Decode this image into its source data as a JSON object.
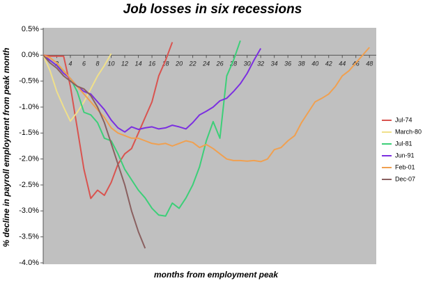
{
  "chart_data": {
    "type": "line",
    "title": "Job losses in six recessions",
    "x_label": "months from employment peak",
    "y_label": "% decline in payroll employment from peak month",
    "x": [
      0,
      1,
      2,
      3,
      4,
      5,
      6,
      7,
      8,
      9,
      10,
      11,
      12,
      13,
      14,
      15,
      16,
      17,
      18,
      19,
      20,
      21,
      22,
      23,
      24,
      25,
      26,
      27,
      28,
      29,
      30,
      31,
      32,
      33,
      34,
      35,
      36,
      37,
      38,
      39,
      40,
      41,
      42,
      43,
      44,
      45,
      46,
      47,
      48
    ],
    "xlim": [
      0,
      49
    ],
    "xticks": [
      2,
      4,
      6,
      8,
      10,
      12,
      14,
      16,
      18,
      20,
      22,
      24,
      26,
      28,
      30,
      32,
      34,
      36,
      38,
      40,
      42,
      44,
      46,
      48
    ],
    "ylim": [
      -4.0,
      0.5
    ],
    "yticks": [
      {
        "value": 0.5,
        "label": "0.5%"
      },
      {
        "value": 0,
        "label": "0.0%"
      },
      {
        "value": -0.5,
        "label": "-0.5%"
      },
      {
        "value": -1.0,
        "label": "-1.0%"
      },
      {
        "value": -1.5,
        "label": "-1.5%"
      },
      {
        "value": -2.0,
        "label": "-2.0%"
      },
      {
        "value": -2.5,
        "label": "-2.5%"
      },
      {
        "value": -3.0,
        "label": "-3.0%"
      },
      {
        "value": -3.5,
        "label": "-3.5%"
      },
      {
        "value": -4.0,
        "label": "-4.0%"
      }
    ],
    "grid": false,
    "legend": "right",
    "series": [
      {
        "name": "Jul-74",
        "color": "#d9534f",
        "values": [
          0,
          -0.02,
          -0.02,
          -0.02,
          -0.6,
          -1.4,
          -2.2,
          -2.76,
          -2.6,
          -2.7,
          -2.45,
          -2.1,
          -1.9,
          -1.8,
          -1.5,
          -1.2,
          -0.9,
          -0.4,
          -0.1,
          0.25,
          null,
          null,
          null,
          null,
          null,
          null,
          null,
          null,
          null,
          null,
          null,
          null,
          null,
          null,
          null,
          null,
          null,
          null,
          null,
          null,
          null,
          null,
          null,
          null,
          null,
          null,
          null,
          null,
          null
        ]
      },
      {
        "name": "March-80",
        "color": "#f0e08a",
        "values": [
          0,
          -0.3,
          -0.7,
          -1.0,
          -1.27,
          -1.1,
          -0.9,
          -0.65,
          -0.4,
          -0.2,
          0.03,
          null,
          null,
          null,
          null,
          null,
          null,
          null,
          null,
          null,
          null,
          null,
          null,
          null,
          null,
          null,
          null,
          null,
          null,
          null,
          null,
          null,
          null,
          null,
          null,
          null,
          null,
          null,
          null,
          null,
          null,
          null,
          null,
          null,
          null,
          null,
          null,
          null,
          null
        ]
      },
      {
        "name": "Jul-81",
        "color": "#3ccf78",
        "values": [
          0,
          -0.1,
          -0.2,
          -0.3,
          -0.45,
          -0.7,
          -1.1,
          -1.15,
          -1.3,
          -1.6,
          -1.65,
          -1.9,
          -2.2,
          -2.4,
          -2.6,
          -2.75,
          -2.95,
          -3.08,
          -3.1,
          -2.85,
          -2.95,
          -2.75,
          -2.5,
          -2.15,
          -1.65,
          -1.28,
          -1.6,
          -0.4,
          -0.1,
          0.28,
          null,
          null,
          null,
          null,
          null,
          null,
          null,
          null,
          null,
          null,
          null,
          null,
          null,
          null,
          null,
          null,
          null,
          null,
          null
        ]
      },
      {
        "name": "Jun-91",
        "color": "#7b2fe0",
        "values": [
          0,
          -0.1,
          -0.2,
          -0.35,
          -0.45,
          -0.6,
          -0.7,
          -0.75,
          -0.9,
          -1.05,
          -1.25,
          -1.4,
          -1.48,
          -1.38,
          -1.43,
          -1.4,
          -1.38,
          -1.42,
          -1.4,
          -1.35,
          -1.38,
          -1.42,
          -1.3,
          -1.15,
          -1.08,
          -1.0,
          -0.88,
          -0.83,
          -0.7,
          -0.55,
          -0.35,
          -0.1,
          0.13,
          null,
          null,
          null,
          null,
          null,
          null,
          null,
          null,
          null,
          null,
          null,
          null,
          null,
          null,
          null,
          null
        ]
      },
      {
        "name": "Feb-01",
        "color": "#f0a050",
        "values": [
          0,
          -0.05,
          -0.15,
          -0.3,
          -0.45,
          -0.6,
          -0.75,
          -0.9,
          -1.05,
          -1.2,
          -1.4,
          -1.5,
          -1.55,
          -1.6,
          -1.6,
          -1.65,
          -1.7,
          -1.72,
          -1.7,
          -1.75,
          -1.7,
          -1.65,
          -1.68,
          -1.78,
          -1.72,
          -1.8,
          -1.9,
          -2.0,
          -2.03,
          -2.03,
          -2.04,
          -2.03,
          -2.05,
          -2.0,
          -1.82,
          -1.78,
          -1.65,
          -1.55,
          -1.3,
          -1.1,
          -0.9,
          -0.83,
          -0.75,
          -0.6,
          -0.4,
          -0.3,
          -0.15,
          0.0,
          0.15
        ]
      },
      {
        "name": "Dec-07",
        "color": "#8a6060",
        "values": [
          0,
          -0.15,
          -0.25,
          -0.4,
          -0.5,
          -0.6,
          -0.65,
          -0.78,
          -1.0,
          -1.3,
          -1.7,
          -2.1,
          -2.5,
          -3.0,
          -3.4,
          -3.72,
          null,
          null,
          null,
          null,
          null,
          null,
          null,
          null,
          null,
          null,
          null,
          null,
          null,
          null,
          null,
          null,
          null,
          null,
          null,
          null,
          null,
          null,
          null,
          null,
          null,
          null,
          null,
          null,
          null,
          null,
          null,
          null,
          null
        ]
      }
    ]
  }
}
